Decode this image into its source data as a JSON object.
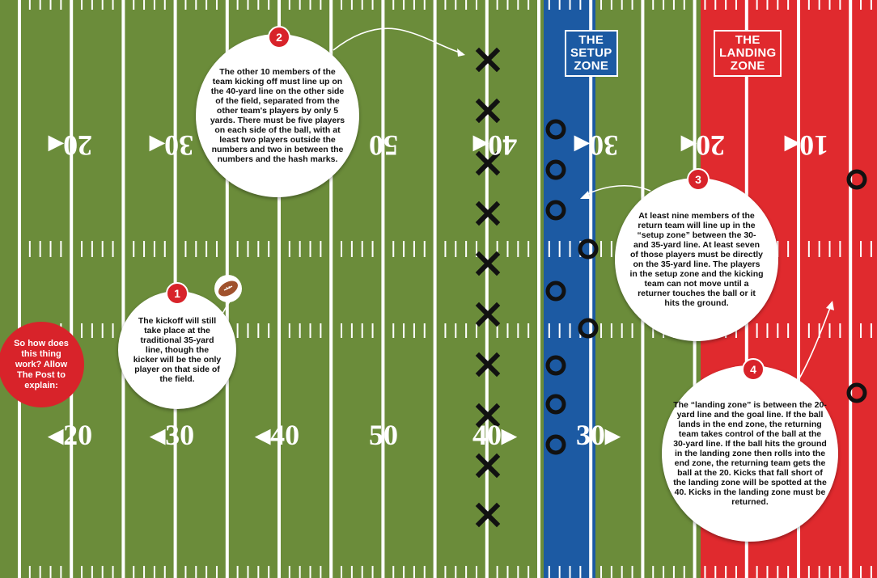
{
  "field_numbers_top": [
    "20",
    "30",
    "50",
    "40",
    "30",
    "20",
    "10"
  ],
  "field_numbers_bottom": [
    "20",
    "30",
    "40",
    "50",
    "40",
    "30"
  ],
  "zones": {
    "setup": [
      "THE",
      "SETUP",
      "ZONE"
    ],
    "landing": [
      "THE",
      "LANDING",
      "ZONE"
    ]
  },
  "intro": "So how does this thing work? Allow The Post to explain:",
  "callouts": [
    {
      "number": "1",
      "text": "The kickoff will still take place at the traditional 35-yard line, though the kicker will be the only player on that side of the field."
    },
    {
      "number": "2",
      "text": "The other 10 members of the team kicking off must line up on the 40-yard line on the other side of the field, separated from the other team's players by only 5 yards. There must be five players on each side of the ball, with at least two players outside the numbers and two in between the numbers and the hash marks."
    },
    {
      "number": "3",
      "text": "At least nine members of the return team will line up in the “setup zone” between the 30- and 35-yard line. At least seven of those players must be directly on the 35-yard line. The players in the setup zone and the kicking team can not move until a returner touches the ball or it hits the ground."
    },
    {
      "number": "4",
      "text": "The “landing zone” is between the 20-yard line and the goal line. If the ball lands in the end zone, the returning team takes control of the ball at the 30-yard line. If the ball hits the ground in the landing zone then rolls into the end zone, the returning team gets the ball at the 20. Kicks that fall short of the landing zone will be spotted at the 40. Kicks in the landing zone must be returned."
    }
  ],
  "colors": {
    "field_green": "#6b8c3a",
    "setup_blue": "#1c5aa3",
    "landing_red": "#e02a2e",
    "accent_red": "#d8232a"
  },
  "markers": {
    "kicking_team": "x-marker",
    "return_team": "o-marker",
    "ball": "football-icon"
  }
}
